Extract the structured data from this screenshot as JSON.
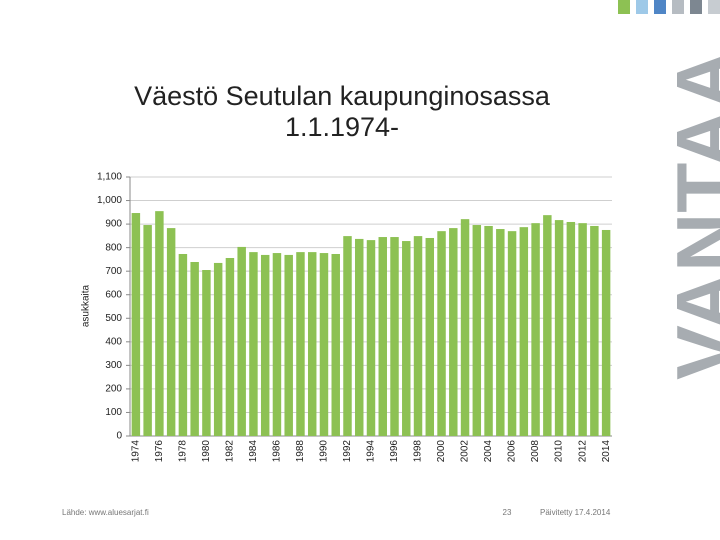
{
  "chart_data": {
    "type": "bar",
    "title": [
      "Väestö Seutulan kaupunginosassa",
      "1.1.1974-"
    ],
    "ylabel": "asukkaita",
    "categories": [
      "1974",
      null,
      "1976",
      null,
      "1978",
      null,
      "1980",
      null,
      "1982",
      null,
      "1984",
      null,
      "1986",
      null,
      "1988",
      null,
      "1990",
      null,
      "1992",
      null,
      "1994",
      null,
      "1996",
      null,
      "1998",
      null,
      "2000",
      null,
      "2002",
      null,
      "2004",
      null,
      "2006",
      null,
      "2008",
      null,
      "2010",
      null,
      "2012",
      null,
      "2014"
    ],
    "values": [
      947,
      896,
      955,
      883,
      773,
      739,
      705,
      735,
      756,
      803,
      781,
      769,
      777,
      769,
      781,
      781,
      777,
      773,
      849,
      837,
      832,
      845,
      845,
      828,
      849,
      841,
      870,
      883,
      921,
      896,
      892,
      879,
      870,
      887,
      904,
      938,
      917,
      909,
      904,
      892,
      875
    ],
    "color": "#8dc153",
    "ylim": [
      0,
      1100
    ],
    "yticks": [
      0,
      100,
      200,
      300,
      400,
      500,
      600,
      700,
      800,
      900,
      {
        "value": 1000,
        "label": "1,000"
      },
      {
        "value": 1100,
        "label": "1,100"
      }
    ],
    "grid": true
  },
  "footer": {
    "source": "Lähde: www.aluesarjat.fi",
    "page": "23",
    "updated": "Päivitetty 17.4.2014"
  },
  "logo": "VANTAA"
}
